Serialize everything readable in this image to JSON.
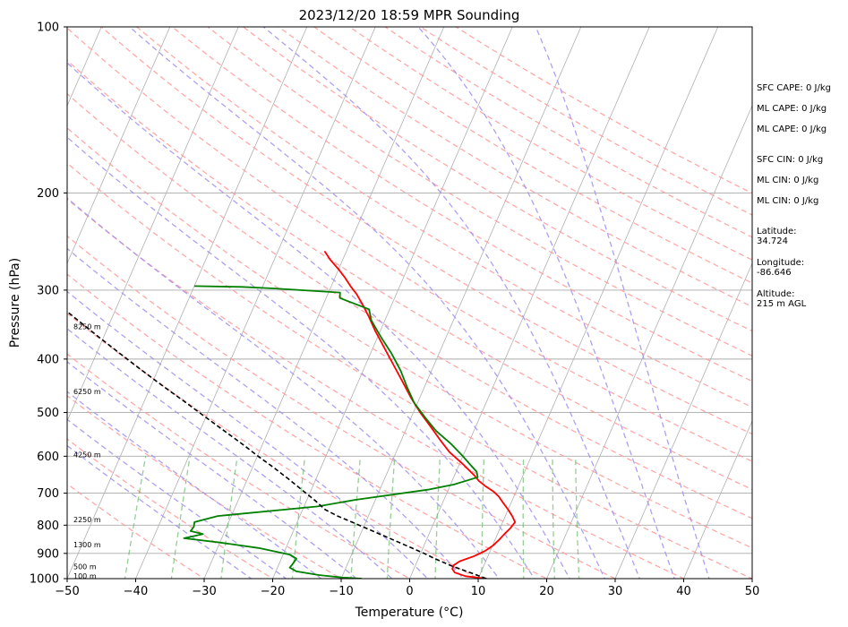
{
  "chart_data": {
    "type": "line",
    "title": "2023/12/20 18:59 MPR Sounding",
    "xlabel": "Temperature (°C)",
    "ylabel": "Pressure (hPa)",
    "xlim": [
      -50,
      50
    ],
    "ylim": [
      1000,
      100
    ],
    "y_scale": "log",
    "grid": true,
    "x_ticks": [
      "−50",
      "−40",
      "−30",
      "−20",
      "−10",
      "0",
      "10",
      "20",
      "30",
      "40",
      "50"
    ],
    "y_ticks": [
      "100",
      "200",
      "300",
      "400",
      "500",
      "600",
      "700",
      "800",
      "900",
      "1000"
    ],
    "series": [
      {
        "name": "",
        "color": "#ff0000",
        "points": [
          [
            1000,
            11.2
          ],
          [
            990,
            8.0
          ],
          [
            975,
            6.2
          ],
          [
            960,
            5.6
          ],
          [
            945,
            5.6
          ],
          [
            930,
            6.2
          ],
          [
            910,
            8.0
          ],
          [
            890,
            9.3
          ],
          [
            870,
            10.1
          ],
          [
            850,
            10.6
          ],
          [
            830,
            11.0
          ],
          [
            810,
            11.5
          ],
          [
            790,
            11.8
          ],
          [
            770,
            11.0
          ],
          [
            750,
            10.0
          ],
          [
            730,
            8.9
          ],
          [
            710,
            7.8
          ],
          [
            695,
            6.7
          ],
          [
            680,
            5.2
          ],
          [
            665,
            3.9
          ],
          [
            650,
            2.9
          ],
          [
            620,
            0.5
          ],
          [
            590,
            -2.2
          ],
          [
            560,
            -4.4
          ],
          [
            530,
            -6.6
          ],
          [
            500,
            -9.0
          ],
          [
            470,
            -11.3
          ],
          [
            440,
            -13.5
          ],
          [
            410,
            -15.9
          ],
          [
            380,
            -18.5
          ],
          [
            355,
            -20.8
          ],
          [
            335,
            -22.6
          ],
          [
            320,
            -24.1
          ],
          [
            305,
            -25.8
          ],
          [
            295,
            -27.2
          ],
          [
            285,
            -28.5
          ],
          [
            275,
            -30.0
          ],
          [
            265,
            -31.7
          ],
          [
            255,
            -33.2
          ]
        ]
      },
      {
        "name": "",
        "color": "#008000",
        "points": [
          [
            1000,
            -7.0
          ],
          [
            995,
            -10.0
          ],
          [
            985,
            -13.5
          ],
          [
            970,
            -17.0
          ],
          [
            955,
            -18.2
          ],
          [
            940,
            -18.0
          ],
          [
            920,
            -17.8
          ],
          [
            905,
            -19.0
          ],
          [
            880,
            -24.0
          ],
          [
            860,
            -30.0
          ],
          [
            845,
            -35.5
          ],
          [
            830,
            -33.0
          ],
          [
            820,
            -35.0
          ],
          [
            805,
            -34.8
          ],
          [
            790,
            -35.0
          ],
          [
            770,
            -32.0
          ],
          [
            740,
            -18.0
          ],
          [
            720,
            -13.0
          ],
          [
            690,
            -3.0
          ],
          [
            675,
            0.5
          ],
          [
            655,
            3.5
          ],
          [
            640,
            3.0
          ],
          [
            620,
            1.5
          ],
          [
            600,
            0.0
          ],
          [
            570,
            -2.5
          ],
          [
            540,
            -5.5
          ],
          [
            510,
            -8.0
          ],
          [
            480,
            -10.5
          ],
          [
            450,
            -12.5
          ],
          [
            420,
            -14.5
          ],
          [
            390,
            -17.0
          ],
          [
            365,
            -19.5
          ],
          [
            350,
            -21.0
          ],
          [
            340,
            -22.0
          ],
          [
            325,
            -23.0
          ],
          [
            310,
            -28.0
          ],
          [
            303,
            -28.3
          ],
          [
            298,
            -38.0
          ],
          [
            296,
            -43.0
          ],
          [
            295,
            -50.0
          ]
        ]
      },
      {
        "name": "",
        "color": "#000000",
        "dashed": true,
        "points": [
          [
            1000,
            11.2
          ],
          [
            980,
            9.0
          ],
          [
            950,
            5.5
          ],
          [
            920,
            2.4
          ],
          [
            900,
            0.5
          ],
          [
            860,
            -3.8
          ],
          [
            820,
            -8.4
          ],
          [
            790,
            -12.0
          ],
          [
            770,
            -14.5
          ],
          [
            750,
            -16.7
          ],
          [
            720,
            -18.9
          ],
          [
            690,
            -21.4
          ],
          [
            660,
            -24.0
          ],
          [
            630,
            -26.8
          ],
          [
            600,
            -29.9
          ],
          [
            570,
            -33.0
          ],
          [
            540,
            -36.4
          ],
          [
            510,
            -40.0
          ],
          [
            480,
            -43.8
          ],
          [
            450,
            -47.9
          ],
          [
            420,
            -52.2
          ],
          [
            390,
            -56.7
          ],
          [
            360,
            -61.5
          ],
          [
            330,
            -66.6
          ],
          [
            300,
            -71.7
          ],
          [
            280,
            -75.0
          ],
          [
            265,
            -77.6
          ]
        ]
      }
    ],
    "height_labels": [
      {
        "text": "100 m",
        "p": 989
      },
      {
        "text": "500 m",
        "p": 950
      },
      {
        "text": "1300 m",
        "p": 868
      },
      {
        "text": "2250 m",
        "p": 782
      },
      {
        "text": "4250 m",
        "p": 596
      },
      {
        "text": "6250 m",
        "p": 458
      },
      {
        "text": "8250 m",
        "p": 349
      }
    ],
    "annotations": {
      "sfc_cape": "SFC CAPE: 0 J/kg",
      "ml_cape_1": "ML CAPE: 0 J/kg",
      "ml_cape_2": "ML CAPE: 0 J/kg",
      "sfc_cin": "SFC CIN: 0 J/kg",
      "ml_cin_1": "ML CIN: 0 J/kg",
      "ml_cin_2": "ML CIN: 0 J/kg",
      "latitude": "Latitude:\n34.724",
      "longitude": "Longitude:\n-86.646",
      "altitude": "Altitude:\n215 m AGL"
    },
    "reference_line_colors": {
      "isotherms": "#b0b0b0",
      "dry_adiabats": "#ff9999",
      "moist_adiabats": "#9f8ff0",
      "mixing_ratio": "#66bb66"
    }
  }
}
